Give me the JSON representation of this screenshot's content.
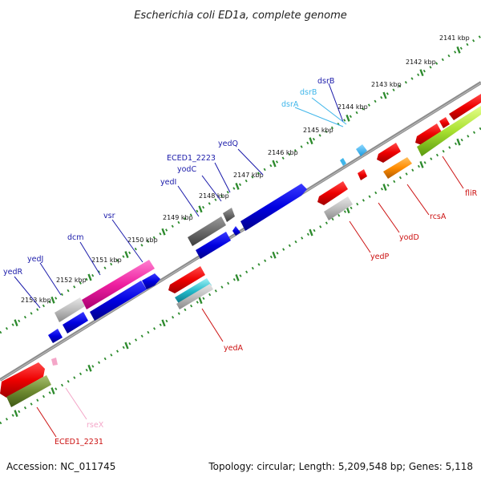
{
  "title": "Escherichia coli ED1a, complete genome",
  "accession": "Accession: NC_011745",
  "summary": "Topology: circular; Length: 5,209,548 bp; Genes: 5,118",
  "colors": {
    "backbone": "#8c8c8c",
    "tick": "#2e8b2e",
    "plus_label": "#1a1aaa",
    "minus_label": "#cc1111"
  },
  "ruler": [
    {
      "label": "2141 kbp"
    },
    {
      "label": "2142 kbp"
    },
    {
      "label": "2143 kbp"
    },
    {
      "label": "2144 kbp"
    },
    {
      "label": "2145 kbp"
    },
    {
      "label": "2146 kbp"
    },
    {
      "label": "2147 kbp"
    },
    {
      "label": "2148 kbp"
    },
    {
      "label": "2149 kbp"
    },
    {
      "label": "2150 kbp"
    },
    {
      "label": "2151 kbp"
    },
    {
      "label": "2152 kbp"
    },
    {
      "label": "2153 kbp"
    }
  ],
  "gene_labels": [
    {
      "text": "dsrB",
      "color": "#1a1aaa"
    },
    {
      "text": "dsrB",
      "color": "#3fb6ea"
    },
    {
      "text": "dsrA",
      "color": "#3fb6ea"
    },
    {
      "text": "yedQ",
      "color": "#1a1aaa"
    },
    {
      "text": "ECED1_2223",
      "color": "#1a1aaa"
    },
    {
      "text": "yodC",
      "color": "#1a1aaa"
    },
    {
      "text": "yedI",
      "color": "#1a1aaa"
    },
    {
      "text": "vsr",
      "color": "#1a1aaa"
    },
    {
      "text": "dcm",
      "color": "#1a1aaa"
    },
    {
      "text": "yedJ",
      "color": "#1a1aaa"
    },
    {
      "text": "yedR",
      "color": "#1a1aaa"
    },
    {
      "text": "fliR",
      "color": "#cc1111"
    },
    {
      "text": "rcsA",
      "color": "#cc1111"
    },
    {
      "text": "yodD",
      "color": "#cc1111"
    },
    {
      "text": "yedP",
      "color": "#cc1111"
    },
    {
      "text": "yedA",
      "color": "#cc1111"
    },
    {
      "text": "rseX",
      "color": "#f4a6c8"
    },
    {
      "text": "ECED1_2231",
      "color": "#cc1111"
    }
  ]
}
